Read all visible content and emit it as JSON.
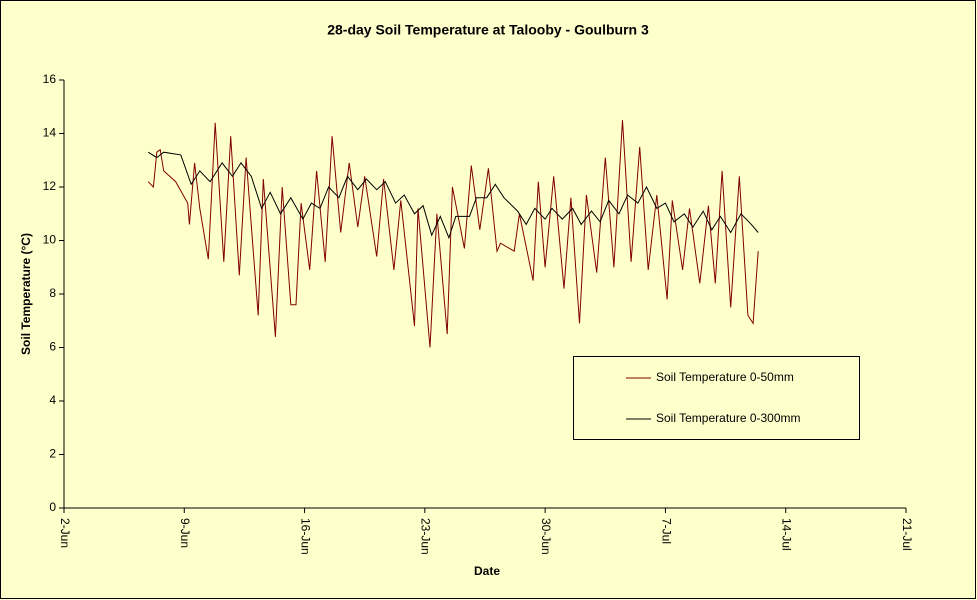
{
  "chart_data": {
    "type": "line",
    "title": "28-day Soil Temperature at Talooby - Goulburn 3",
    "x_label": "Date",
    "y_label": "Soil Temperature (°C)",
    "xlim": [
      2,
      51
    ],
    "ylim": [
      0,
      16
    ],
    "xticks": [
      {
        "value": 2,
        "label": "2-Jun"
      },
      {
        "value": 9,
        "label": "9-Jun"
      },
      {
        "value": 16,
        "label": "16-Jun"
      },
      {
        "value": 23,
        "label": "23-Jun"
      },
      {
        "value": 30,
        "label": "30-Jun"
      },
      {
        "value": 37,
        "label": "7-Jul"
      },
      {
        "value": 44,
        "label": "14-Jul"
      },
      {
        "value": 51,
        "label": "21-Jul"
      }
    ],
    "yticks": [
      0,
      2,
      4,
      6,
      8,
      10,
      12,
      14,
      16
    ],
    "grid": false,
    "series": [
      {
        "name": "Soil Temperature 0-50mm",
        "color": "#800000",
        "x": [
          6.9,
          7.2,
          7.4,
          7.6,
          7.8,
          8.5,
          9.2,
          9.3,
          9.6,
          9.9,
          10.4,
          10.8,
          11.3,
          11.7,
          12.2,
          12.6,
          13.3,
          13.6,
          14.3,
          14.7,
          15.2,
          15.5,
          15.8,
          16.3,
          16.7,
          17.2,
          17.6,
          18.1,
          18.6,
          19.1,
          19.5,
          20.2,
          20.6,
          21.2,
          21.6,
          22.4,
          22.6,
          23.3,
          23.7,
          24.3,
          24.6,
          25.3,
          25.7,
          26.2,
          26.7,
          27.2,
          27.4,
          28.2,
          28.5,
          29.3,
          29.6,
          30.0,
          30.5,
          31.1,
          31.5,
          32.0,
          32.4,
          33.0,
          33.5,
          34.0,
          34.5,
          35.0,
          35.5,
          36.0,
          36.5,
          37.1,
          37.4,
          38.0,
          38.4,
          39.0,
          39.5,
          39.9,
          40.3,
          40.8,
          41.3,
          41.8,
          42.1,
          42.4
        ],
        "values": [
          12.2,
          12.0,
          13.3,
          13.4,
          12.6,
          12.2,
          11.4,
          10.6,
          12.9,
          11.2,
          9.3,
          14.4,
          9.2,
          13.9,
          8.7,
          13.1,
          7.2,
          12.3,
          6.4,
          12.0,
          7.6,
          7.6,
          11.4,
          8.9,
          12.6,
          9.2,
          13.9,
          10.3,
          12.9,
          10.5,
          12.4,
          9.4,
          12.3,
          8.9,
          11.5,
          6.8,
          11.2,
          6.0,
          11.0,
          6.5,
          12.0,
          9.7,
          12.8,
          10.4,
          12.7,
          9.6,
          9.9,
          9.6,
          11.0,
          8.5,
          12.2,
          9.0,
          12.4,
          8.2,
          11.6,
          6.9,
          11.7,
          8.8,
          13.1,
          9.0,
          14.5,
          9.2,
          13.5,
          8.9,
          11.7,
          7.8,
          11.5,
          8.9,
          11.2,
          8.4,
          11.3,
          8.4,
          12.6,
          7.5,
          12.4,
          7.2,
          6.9,
          9.6
        ]
      },
      {
        "name": "Soil Temperature 0-300mm",
        "color": "#000000",
        "x": [
          6.9,
          7.4,
          7.8,
          8.8,
          9.4,
          9.9,
          10.5,
          11.2,
          11.8,
          12.3,
          12.9,
          13.5,
          14.0,
          14.6,
          15.2,
          15.9,
          16.4,
          16.9,
          17.4,
          18.0,
          18.5,
          19.1,
          19.6,
          20.2,
          20.7,
          21.3,
          21.8,
          22.4,
          22.9,
          23.4,
          23.9,
          24.4,
          24.8,
          25.6,
          26.0,
          26.6,
          27.1,
          27.6,
          28.4,
          28.9,
          29.4,
          30.0,
          30.4,
          31.0,
          31.6,
          32.1,
          32.7,
          33.2,
          33.7,
          34.3,
          34.8,
          35.4,
          35.9,
          36.5,
          37.0,
          37.5,
          38.1,
          38.6,
          39.2,
          39.7,
          40.2,
          40.8,
          41.4,
          42.0,
          42.4
        ],
        "values": [
          13.3,
          13.1,
          13.3,
          13.2,
          12.1,
          12.6,
          12.2,
          12.9,
          12.4,
          12.9,
          12.4,
          11.2,
          11.8,
          11.0,
          11.6,
          10.8,
          11.4,
          11.2,
          12.0,
          11.6,
          12.4,
          11.9,
          12.3,
          11.9,
          12.2,
          11.4,
          11.7,
          11.0,
          11.3,
          10.2,
          10.9,
          10.1,
          10.9,
          10.9,
          11.6,
          11.6,
          12.1,
          11.6,
          11.1,
          10.6,
          11.2,
          10.8,
          11.2,
          10.8,
          11.2,
          10.6,
          11.1,
          10.7,
          11.5,
          11.0,
          11.7,
          11.4,
          12.0,
          11.2,
          11.4,
          10.7,
          11.0,
          10.5,
          11.1,
          10.4,
          10.9,
          10.3,
          11.0,
          10.6,
          10.3
        ]
      }
    ]
  }
}
